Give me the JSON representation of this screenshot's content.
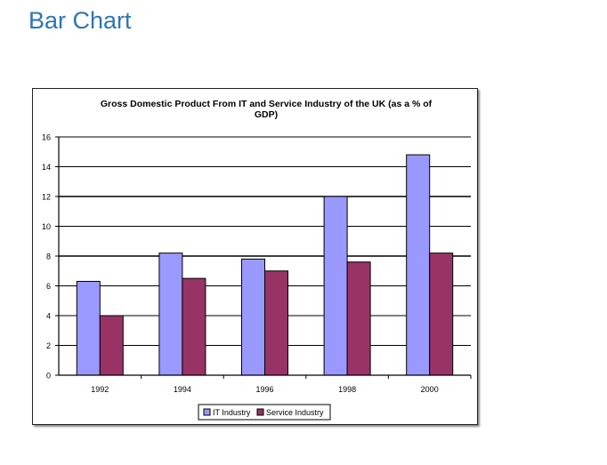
{
  "page": {
    "heading": "Bar Chart"
  },
  "chart_data": {
    "type": "bar",
    "title_line1": "Gross Domestic Product From IT and Service Industry of the UK (as a % of",
    "title_line2": "GDP)",
    "categories": [
      "1992",
      "1994",
      "1996",
      "1998",
      "2000"
    ],
    "series": [
      {
        "name": "IT Industry",
        "values": [
          6.3,
          8.2,
          7.8,
          12.0,
          14.8
        ],
        "color": "#9999ff"
      },
      {
        "name": "Service Industry",
        "values": [
          4.0,
          6.5,
          7.0,
          7.6,
          8.2
        ],
        "color": "#993366"
      }
    ],
    "y_ticks": [
      "0",
      "2",
      "4",
      "6",
      "8",
      "10",
      "12",
      "14",
      "16"
    ],
    "ylim": [
      0,
      16
    ],
    "grid": true,
    "legend_position": "bottom",
    "xlabel": "",
    "ylabel": ""
  }
}
